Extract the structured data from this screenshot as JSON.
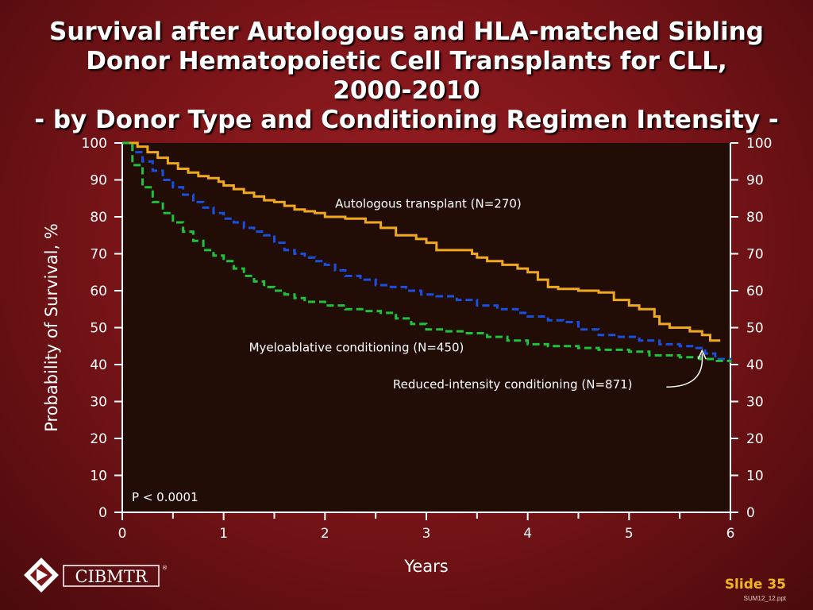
{
  "slide": {
    "title_lines": [
      "Survival after Autologous and HLA-matched Sibling",
      "Donor Hematopoietic Cell Transplants for CLL,",
      "2000-2010",
      "- by Donor Type and Conditioning Regimen Intensity -"
    ],
    "slide_number": "Slide 35",
    "file_ref": "SUM12_12.ppt",
    "logo_text": "CIBMTR",
    "logo_mark": "®"
  },
  "colors": {
    "autologous": "#f0a91c",
    "myeloablative": "#1a4fe0",
    "reduced_intensity": "#21c13a",
    "plot_bg": "#220c06"
  },
  "chart_data": {
    "type": "line",
    "xlabel": "Years",
    "ylabel": "Probability of Survival, %",
    "xlim": [
      0,
      6
    ],
    "ylim": [
      0,
      100
    ],
    "x_ticks": [
      "0",
      "1",
      "2",
      "3",
      "4",
      "5",
      "6"
    ],
    "y_ticks": [
      "0",
      "10",
      "20",
      "30",
      "40",
      "50",
      "60",
      "70",
      "80",
      "90",
      "100"
    ],
    "annotation_p": "P < 0.0001",
    "series": [
      {
        "name": "Autologous transplant (N=270)",
        "color_key": "autologous",
        "style": "solid",
        "x": [
          0,
          0.05,
          0.15,
          0.25,
          0.35,
          0.45,
          0.55,
          0.65,
          0.75,
          0.85,
          0.95,
          1.0,
          1.1,
          1.2,
          1.3,
          1.4,
          1.5,
          1.6,
          1.7,
          1.8,
          1.9,
          2.0,
          2.2,
          2.4,
          2.55,
          2.7,
          2.9,
          3.0,
          3.1,
          3.3,
          3.45,
          3.5,
          3.6,
          3.75,
          3.9,
          4.0,
          4.1,
          4.2,
          4.3,
          4.5,
          4.7,
          4.85,
          5.0,
          5.1,
          5.25,
          5.3,
          5.4,
          5.6,
          5.72,
          5.8,
          5.9
        ],
        "y": [
          100,
          100,
          99,
          97.5,
          96,
          94.5,
          93,
          92,
          91,
          90.5,
          89.5,
          88.5,
          87.5,
          86.5,
          85.5,
          84.5,
          84,
          83,
          82,
          81.5,
          81,
          80,
          79.5,
          78.5,
          77,
          75,
          74,
          73,
          71,
          71,
          70,
          69,
          68,
          67,
          66,
          65,
          63,
          61,
          60.5,
          60,
          59.5,
          57.5,
          56,
          55,
          53,
          51,
          50,
          49,
          48,
          46.5,
          46.5
        ]
      },
      {
        "name": "Myeloablative conditioning (N=450)",
        "color_key": "myeloablative",
        "style": "dashed",
        "x": [
          0,
          0.1,
          0.2,
          0.3,
          0.4,
          0.5,
          0.6,
          0.7,
          0.8,
          0.9,
          1.0,
          1.1,
          1.2,
          1.3,
          1.4,
          1.5,
          1.6,
          1.7,
          1.8,
          1.9,
          2.0,
          2.1,
          2.2,
          2.35,
          2.5,
          2.65,
          2.8,
          2.95,
          3.1,
          3.3,
          3.5,
          3.7,
          3.9,
          4.0,
          4.2,
          4.35,
          4.5,
          4.7,
          4.9,
          5.1,
          5.3,
          5.5,
          5.65,
          5.75,
          5.85,
          6.0
        ],
        "y": [
          100,
          97.5,
          95,
          92.5,
          90,
          88,
          86,
          84,
          82.5,
          81,
          79.5,
          78.5,
          77,
          76,
          75,
          73,
          71,
          70,
          69,
          68,
          67,
          65.5,
          64,
          63,
          61.5,
          61,
          60,
          59,
          58.5,
          57.5,
          56,
          55,
          54,
          53,
          52,
          51.5,
          49.5,
          48,
          47.5,
          46.5,
          45.5,
          45,
          44.5,
          43,
          41.5,
          40.5
        ]
      },
      {
        "name": "Reduced-intensity conditioning (N=871)",
        "color_key": "reduced_intensity",
        "style": "dashed",
        "x": [
          0,
          0.1,
          0.2,
          0.3,
          0.4,
          0.5,
          0.6,
          0.7,
          0.8,
          0.9,
          1.0,
          1.1,
          1.2,
          1.3,
          1.4,
          1.5,
          1.6,
          1.7,
          1.8,
          2.0,
          2.2,
          2.4,
          2.55,
          2.7,
          2.85,
          3.0,
          3.2,
          3.4,
          3.6,
          3.8,
          4.0,
          4.2,
          4.5,
          4.7,
          5.0,
          5.2,
          5.5,
          5.7,
          5.85,
          6.0
        ],
        "y": [
          100,
          94,
          88,
          84,
          81,
          78.5,
          76,
          73.5,
          71,
          69.5,
          68,
          66,
          64,
          62.5,
          61,
          60,
          59,
          58,
          57,
          56,
          55,
          54.5,
          54,
          52.5,
          51,
          49.5,
          49,
          48.5,
          47.5,
          46.5,
          45.5,
          45,
          44.5,
          44,
          43.5,
          42.5,
          42,
          41.5,
          41,
          40.5
        ]
      }
    ],
    "series_labels": [
      {
        "text": "Autologous transplant (N=270)",
        "x": 2.1,
        "y": 82.5
      },
      {
        "text": "Myeloablative conditioning (N=450)",
        "x": 1.25,
        "y": 43.5
      },
      {
        "text": "Reduced-intensity conditioning (N=871)",
        "x": 2.67,
        "y": 33.5
      }
    ],
    "pointer": {
      "from": [
        5.4,
        33.5
      ],
      "to": [
        5.72,
        43.8
      ]
    }
  }
}
